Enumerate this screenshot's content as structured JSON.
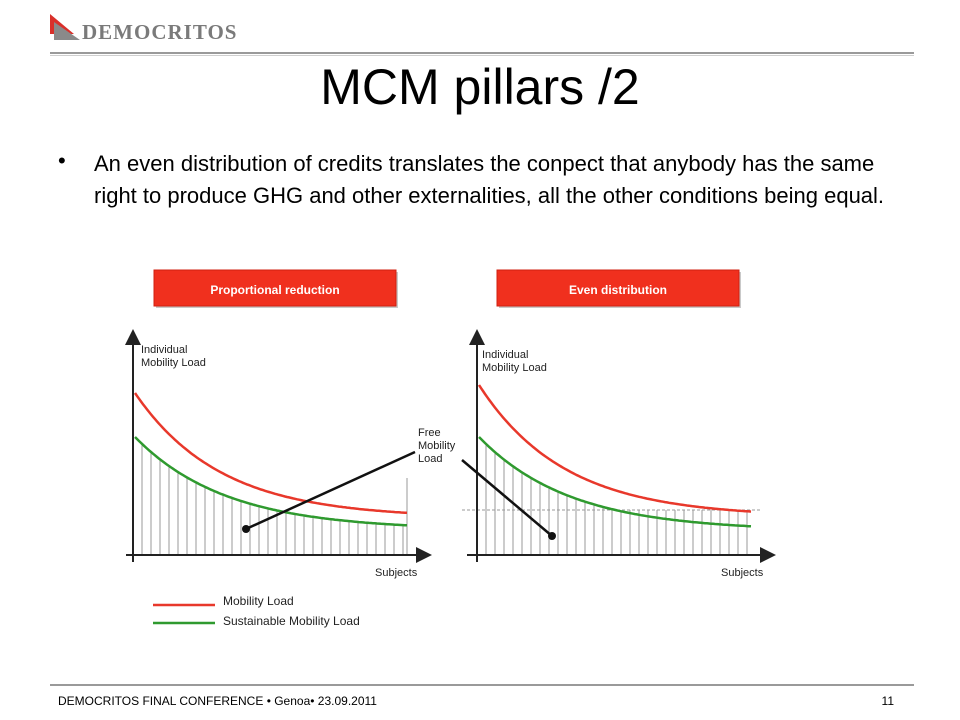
{
  "header": {
    "logo_text": "DEMOCRITOS",
    "logo_icon": "democritos-logo-icon",
    "colors": {
      "logo_red": "#d9302a",
      "logo_gray": "#8a8a8a"
    }
  },
  "slide": {
    "title": "MCM pillars /2",
    "bullet": "An even distribution of credits translates the conpect that anybody has the same right to produce GHG and other externalities, all the other conditions being equal."
  },
  "figure": {
    "left_panel": {
      "header": "Proportional reduction",
      "y_axis_label_line1": "Individual",
      "y_axis_label_line2": "Mobility Load",
      "x_axis_label": "Subjects"
    },
    "right_panel": {
      "header": "Even distribution",
      "y_axis_label_line1": "Individual",
      "y_axis_label_line2": "Mobility Load",
      "x_axis_label": "Subjects"
    },
    "annotation_line1": "Free",
    "annotation_line2": "Mobility",
    "annotation_line3": "Load",
    "legend": [
      {
        "label": "Mobility Load",
        "color": "#e8382b"
      },
      {
        "label": "Sustainable Mobility Load",
        "color": "#2f9a2f"
      }
    ],
    "colors": {
      "header_fill": "#f0301e",
      "header_text": "#ffffff"
    }
  },
  "footer": {
    "left": "DEMOCRITOS FINAL CONFERENCE • Genoa• 23.09.2011",
    "page_number": "11"
  }
}
